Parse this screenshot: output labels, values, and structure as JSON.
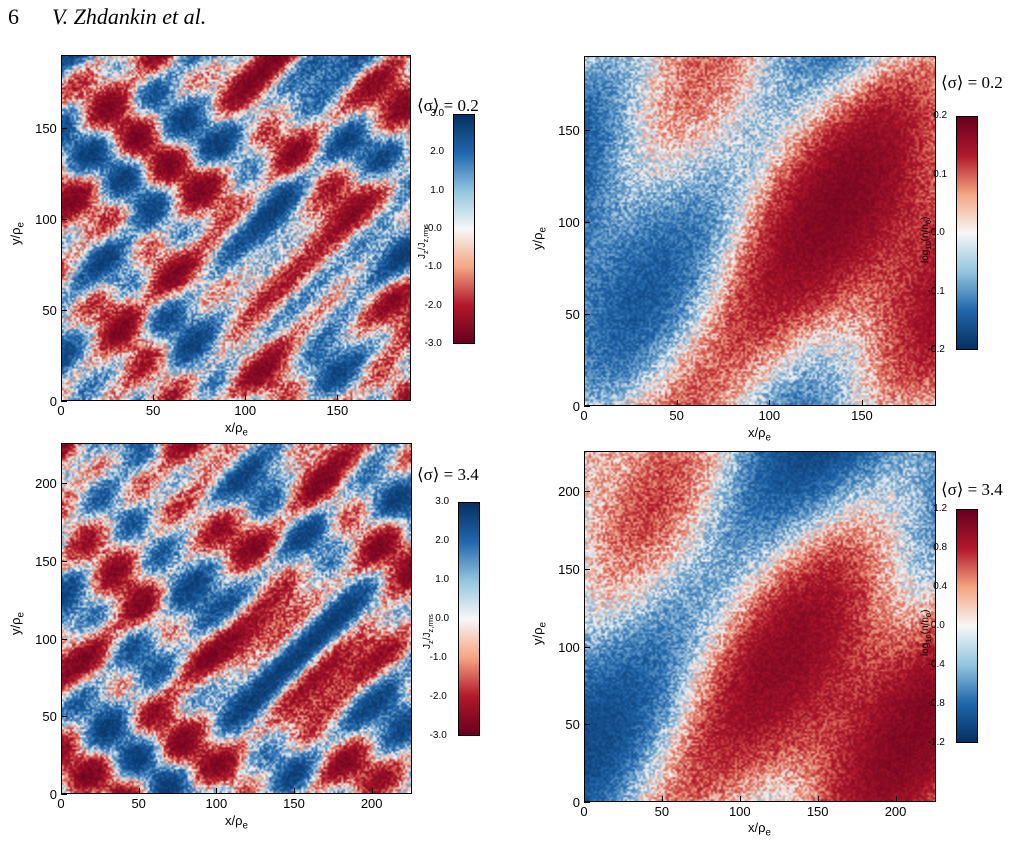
{
  "header": {
    "page_number": "6",
    "authors": "V. Zhdankin et al."
  },
  "panels": [
    {
      "id": "tl",
      "sigma_label": "⟨σ⟩ = 0.2",
      "xlabel": "x/ρ",
      "xlabel_sub": "e",
      "ylabel": "y/ρ",
      "ylabel_sub": "e",
      "xticks": [
        "0",
        "50",
        "100",
        "150"
      ],
      "yticks": [
        "0",
        "50",
        "100",
        "150"
      ],
      "cbar_title": "J",
      "cbar_title_sub": "z",
      "cbar_title_rest": "/J",
      "cbar_title_sub2": "z,rms",
      "cbar_ticks": [
        "3.0",
        "2.0",
        "1.0",
        "-0.0",
        "-1.0",
        "-2.0",
        "-3.0"
      ],
      "colormap": "jz"
    },
    {
      "id": "tr",
      "sigma_label": "⟨σ⟩ = 0.2",
      "xlabel": "x/ρ",
      "xlabel_sub": "e",
      "ylabel": "y/ρ",
      "ylabel_sub": "e",
      "xticks": [
        "0",
        "50",
        "100",
        "150"
      ],
      "yticks": [
        "0",
        "50",
        "100",
        "150"
      ],
      "cbar_title": "log",
      "cbar_title_sub": "10",
      "cbar_title_rest": "(n/n",
      "cbar_title_sub2": "0",
      "cbar_title_end": ")",
      "cbar_ticks": [
        "0.2",
        "0.1",
        "-0.0",
        "-0.1",
        "-0.2"
      ],
      "colormap": "n"
    },
    {
      "id": "bl",
      "sigma_label": "⟨σ⟩ = 3.4",
      "xlabel": "x/ρ",
      "xlabel_sub": "e",
      "ylabel": "y/ρ",
      "ylabel_sub": "e",
      "xticks": [
        "0",
        "50",
        "100",
        "150",
        "200"
      ],
      "yticks": [
        "0",
        "50",
        "100",
        "150",
        "200"
      ],
      "cbar_title": "J",
      "cbar_title_sub": "z",
      "cbar_title_rest": "/J",
      "cbar_title_sub2": "z,rms",
      "cbar_ticks": [
        "3.0",
        "2.0",
        "1.0",
        "0.0",
        "-1.0",
        "-2.0",
        "-3.0"
      ],
      "colormap": "jz"
    },
    {
      "id": "br",
      "sigma_label": "⟨σ⟩ = 3.4",
      "xlabel": "x/ρ",
      "xlabel_sub": "e",
      "ylabel": "y/ρ",
      "ylabel_sub": "e",
      "xticks": [
        "0",
        "50",
        "100",
        "150",
        "200"
      ],
      "yticks": [
        "0",
        "50",
        "100",
        "150",
        "200"
      ],
      "cbar_title": "log",
      "cbar_title_sub": "10",
      "cbar_title_rest": "(n/n",
      "cbar_title_sub2": "0",
      "cbar_title_end": ")",
      "cbar_ticks": [
        "1.2",
        "0.8",
        "0.4",
        "-0.0",
        "-0.4",
        "-0.8",
        "-1.2"
      ],
      "colormap": "n"
    }
  ],
  "colors": {
    "red": "#67001f",
    "white": "#f7f7f7",
    "blue": "#053061"
  }
}
